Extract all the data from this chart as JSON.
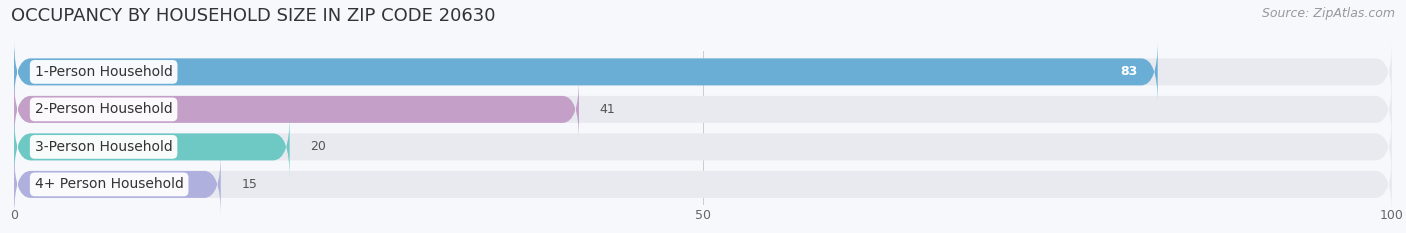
{
  "title": "OCCUPANCY BY HOUSEHOLD SIZE IN ZIP CODE 20630",
  "source": "Source: ZipAtlas.com",
  "categories": [
    "1-Person Household",
    "2-Person Household",
    "3-Person Household",
    "4+ Person Household"
  ],
  "values": [
    83,
    41,
    20,
    15
  ],
  "bar_colors": [
    "#6aaed6",
    "#c4a0c8",
    "#6ec9c4",
    "#b0b0de"
  ],
  "bar_bg_color": "#e8eaf0",
  "xlim": [
    0,
    100
  ],
  "xticks": [
    0,
    50,
    100
  ],
  "fig_bg_color": "#f7f8fc",
  "title_fontsize": 13,
  "source_fontsize": 9,
  "label_fontsize": 10,
  "value_fontsize": 9,
  "bar_height": 0.72,
  "bar_gap": 0.08
}
